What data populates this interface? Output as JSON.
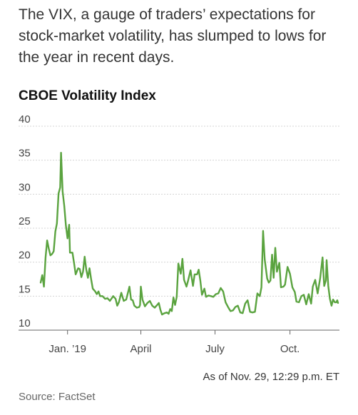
{
  "subhead": "The VIX, a gauge of traders’ expectations for stock-market volatility, has slumped to lows for the year in recent days.",
  "note": "As of Nov. 29, 12:29 p.m. ET",
  "source": "Source: FactSet",
  "chart_data": {
    "type": "line",
    "title": "CBOE Volatility Index",
    "xlabel": "",
    "ylabel": "",
    "ylim": [
      10,
      40
    ],
    "yticks": [
      10,
      15,
      20,
      25,
      30,
      35,
      40
    ],
    "x_range": [
      "2018-11-29",
      "2019-11-29"
    ],
    "xticks": [
      {
        "date": "2019-01-01",
        "label": "Jan. ’19"
      },
      {
        "date": "2019-04-01",
        "label": "April"
      },
      {
        "date": "2019-07-01",
        "label": "July"
      },
      {
        "date": "2019-10-01",
        "label": "Oct."
      }
    ],
    "grid": "horizontal",
    "color": "#5aa33f",
    "series": [
      {
        "name": "",
        "points": [
          [
            "2018-11-29",
            17
          ],
          [
            "2018-12-01",
            18.1
          ],
          [
            "2018-12-03",
            16.4
          ],
          [
            "2018-12-05",
            20.7
          ],
          [
            "2018-12-07",
            23.2
          ],
          [
            "2018-12-09",
            22
          ],
          [
            "2018-12-11",
            21
          ],
          [
            "2018-12-13",
            21.2
          ],
          [
            "2018-12-15",
            21.6
          ],
          [
            "2018-12-17",
            24.5
          ],
          [
            "2018-12-19",
            25.7
          ],
          [
            "2018-12-21",
            30.1
          ],
          [
            "2018-12-23",
            31
          ],
          [
            "2018-12-24",
            36.1
          ],
          [
            "2018-12-26",
            30.4
          ],
          [
            "2018-12-28",
            28.3
          ],
          [
            "2018-12-30",
            25.4
          ],
          [
            "2019-01-01",
            23.5
          ],
          [
            "2019-01-03",
            25.5
          ],
          [
            "2019-01-04",
            21.4
          ],
          [
            "2019-01-07",
            21.4
          ],
          [
            "2019-01-09",
            19.9
          ],
          [
            "2019-01-11",
            18.2
          ],
          [
            "2019-01-14",
            19.1
          ],
          [
            "2019-01-16",
            19
          ],
          [
            "2019-01-18",
            17.8
          ],
          [
            "2019-01-20",
            18.6
          ],
          [
            "2019-01-22",
            20.8
          ],
          [
            "2019-01-24",
            18.9
          ],
          [
            "2019-01-26",
            17.7
          ],
          [
            "2019-01-28",
            19.1
          ],
          [
            "2019-01-30",
            17.5
          ],
          [
            "2019-02-01",
            16.1
          ],
          [
            "2019-02-04",
            15.7
          ],
          [
            "2019-02-06",
            15.3
          ],
          [
            "2019-02-08",
            15.7
          ],
          [
            "2019-02-10",
            15
          ],
          [
            "2019-02-13",
            15
          ],
          [
            "2019-02-16",
            14.6
          ],
          [
            "2019-02-19",
            14.7
          ],
          [
            "2019-02-22",
            14.3
          ],
          [
            "2019-02-26",
            15
          ],
          [
            "2019-03-01",
            14.6
          ],
          [
            "2019-03-03",
            13.6
          ],
          [
            "2019-03-05",
            14.1
          ],
          [
            "2019-03-08",
            15.5
          ],
          [
            "2019-03-11",
            14.3
          ],
          [
            "2019-03-14",
            14.5
          ],
          [
            "2019-03-18",
            16.4
          ],
          [
            "2019-03-20",
            14.5
          ],
          [
            "2019-03-22",
            14.4
          ],
          [
            "2019-03-24",
            13.6
          ],
          [
            "2019-03-27",
            13.3
          ],
          [
            "2019-03-30",
            13.4
          ],
          [
            "2019-03-31",
            13.7
          ],
          [
            "2019-04-01",
            16.4
          ],
          [
            "2019-04-03",
            14.5
          ],
          [
            "2019-04-06",
            13.5
          ],
          [
            "2019-04-09",
            14
          ],
          [
            "2019-04-12",
            14.3
          ],
          [
            "2019-04-15",
            13.6
          ],
          [
            "2019-04-18",
            13.3
          ],
          [
            "2019-04-21",
            13.7
          ],
          [
            "2019-04-23",
            14
          ],
          [
            "2019-04-25",
            13
          ],
          [
            "2019-04-27",
            12.3
          ],
          [
            "2019-04-30",
            12.5
          ],
          [
            "2019-05-03",
            12.6
          ],
          [
            "2019-05-05",
            12.4
          ],
          [
            "2019-05-07",
            13.1
          ],
          [
            "2019-05-09",
            12.8
          ],
          [
            "2019-05-11",
            14.8
          ],
          [
            "2019-05-13",
            13.7
          ],
          [
            "2019-05-15",
            14.9
          ],
          [
            "2019-05-17",
            19.8
          ],
          [
            "2019-05-20",
            18.3
          ],
          [
            "2019-05-22",
            20.5
          ],
          [
            "2019-05-24",
            17.4
          ],
          [
            "2019-05-27",
            16.4
          ],
          [
            "2019-05-29",
            17.3
          ],
          [
            "2019-06-01",
            18.8
          ],
          [
            "2019-06-04",
            16.5
          ],
          [
            "2019-06-06",
            18.2
          ],
          [
            "2019-06-09",
            18.2
          ],
          [
            "2019-06-11",
            18.9
          ],
          [
            "2019-06-13",
            17.3
          ],
          [
            "2019-06-15",
            15.2
          ],
          [
            "2019-06-18",
            16.1
          ],
          [
            "2019-06-20",
            14.9
          ],
          [
            "2019-06-23",
            15.1
          ],
          [
            "2019-06-26",
            15
          ],
          [
            "2019-06-29",
            14.9
          ],
          [
            "2019-07-02",
            15.3
          ],
          [
            "2019-07-05",
            15.4
          ],
          [
            "2019-07-08",
            16.2
          ],
          [
            "2019-07-11",
            15.7
          ],
          [
            "2019-07-14",
            14.1
          ],
          [
            "2019-07-17",
            13.4
          ],
          [
            "2019-07-20",
            12.8
          ],
          [
            "2019-07-23",
            12.9
          ],
          [
            "2019-07-26",
            13.4
          ],
          [
            "2019-07-29",
            13.6
          ],
          [
            "2019-08-01",
            12.6
          ],
          [
            "2019-08-04",
            12.5
          ],
          [
            "2019-08-07",
            13.9
          ],
          [
            "2019-08-10",
            14.4
          ],
          [
            "2019-08-13",
            12.7
          ],
          [
            "2019-08-16",
            12.6
          ],
          [
            "2019-08-19",
            12.7
          ],
          [
            "2019-08-22",
            15.4
          ],
          [
            "2019-08-25",
            15
          ],
          [
            "2019-08-27",
            16.3
          ],
          [
            "2019-08-29",
            24.6
          ],
          [
            "2019-08-31",
            20.4
          ],
          [
            "2019-09-03",
            17.6
          ],
          [
            "2019-09-05",
            17
          ],
          [
            "2019-09-07",
            17.3
          ],
          [
            "2019-09-09",
            21.1
          ],
          [
            "2019-09-11",
            17.7
          ],
          [
            "2019-09-13",
            22.1
          ],
          [
            "2019-09-15",
            18.6
          ],
          [
            "2019-09-18",
            19.9
          ],
          [
            "2019-09-20",
            16.3
          ],
          [
            "2019-09-23",
            16.4
          ],
          [
            "2019-09-25",
            16.7
          ],
          [
            "2019-09-28",
            19.3
          ],
          [
            "2019-10-01",
            18.3
          ],
          [
            "2019-10-04",
            16.3
          ],
          [
            "2019-10-07",
            15.6
          ],
          [
            "2019-10-09",
            14.2
          ],
          [
            "2019-10-12",
            14.1
          ],
          [
            "2019-10-15",
            15
          ],
          [
            "2019-10-18",
            15.2
          ],
          [
            "2019-10-21",
            13.8
          ],
          [
            "2019-10-24",
            15.3
          ],
          [
            "2019-10-27",
            13.9
          ],
          [
            "2019-10-29",
            16.4
          ],
          [
            "2019-11-01",
            17.4
          ],
          [
            "2019-11-04",
            15.4
          ],
          [
            "2019-11-07",
            17.6
          ],
          [
            "2019-11-10",
            20.7
          ],
          [
            "2019-11-12",
            16.5
          ],
          [
            "2019-11-14",
            17.3
          ],
          [
            "2019-11-15",
            20.3
          ],
          [
            "2019-11-17",
            16.5
          ],
          [
            "2019-11-19",
            14.6
          ],
          [
            "2019-11-21",
            13.6
          ],
          [
            "2019-11-23",
            14.5
          ],
          [
            "2019-11-25",
            14.1
          ],
          [
            "2019-11-27",
            14.1
          ],
          [
            "2019-11-28",
            14.4
          ],
          [
            "2019-11-29",
            14
          ]
        ]
      }
    ]
  }
}
